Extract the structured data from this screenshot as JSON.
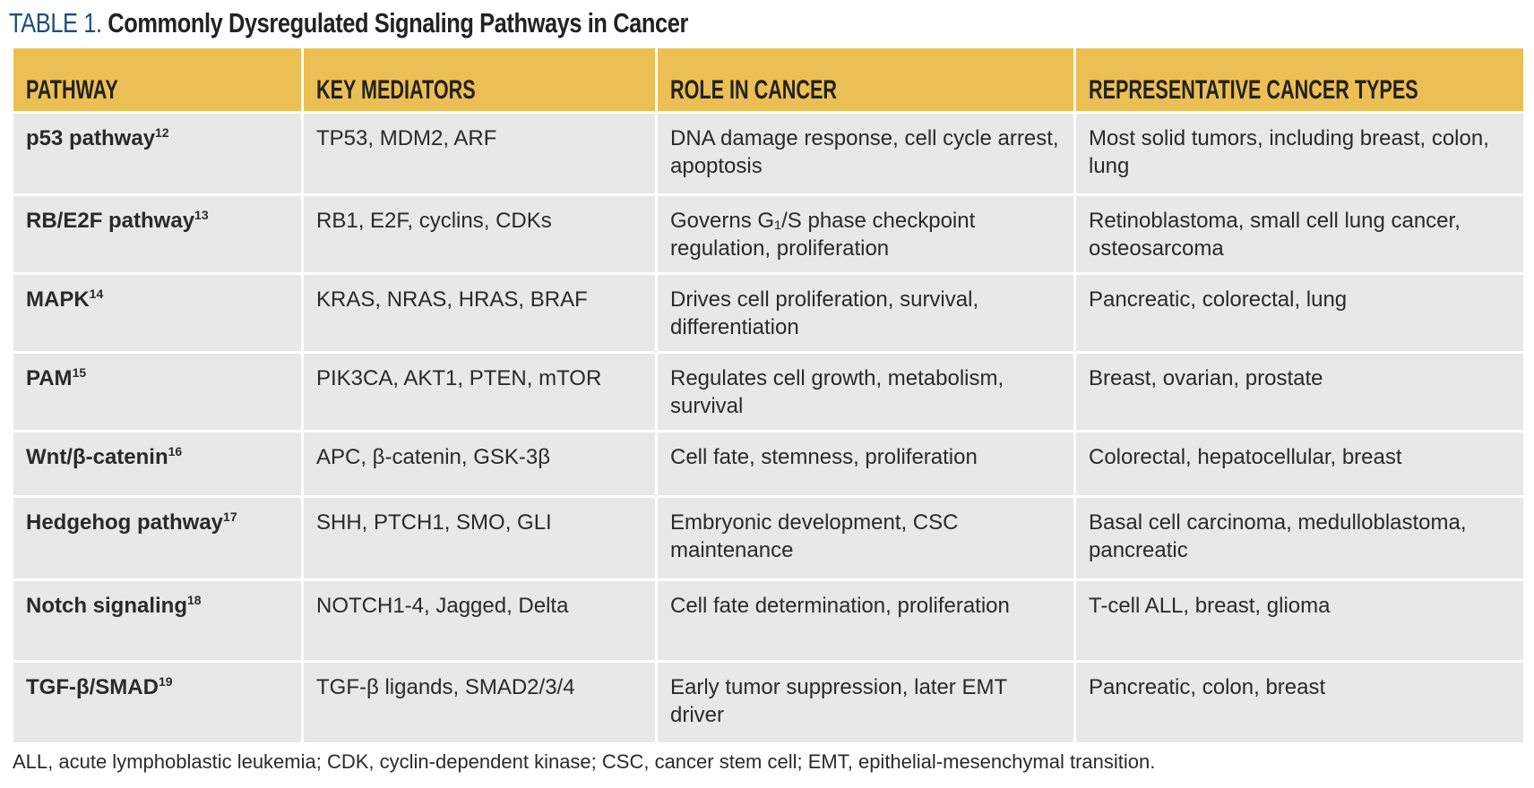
{
  "title": {
    "label": "TABLE 1.",
    "text": "Commonly Dysregulated Signaling Pathways in Cancer"
  },
  "colors": {
    "header_bg": "#ecbf55",
    "row_bg": "#e8e8e8",
    "label": "#1d4e7a"
  },
  "columns": [
    "PATHWAY",
    "KEY MEDIATORS",
    "ROLE IN CANCER",
    "REPRESENTATIVE CANCER TYPES"
  ],
  "rows": [
    {
      "pathway": "p53 pathway",
      "ref": "12",
      "mediators": "TP53, MDM2, ARF",
      "role": "DNA damage response, cell cycle arrest, apoptosis",
      "types": "Most solid tumors, including breast, colon, lung"
    },
    {
      "pathway": "RB/E2F pathway",
      "ref": "13",
      "mediators": "RB1, E2F, cyclins, CDKs",
      "role": "Governs G₁/S phase checkpoint regulation, proliferation",
      "types": "Retinoblastoma, small cell lung cancer, osteosarcoma"
    },
    {
      "pathway": "MAPK",
      "ref": "14",
      "mediators": "KRAS, NRAS, HRAS, BRAF",
      "role": "Drives cell proliferation, survival, differentiation",
      "types": "Pancreatic, colorectal, lung"
    },
    {
      "pathway": "PAM",
      "ref": "15",
      "mediators": "PIK3CA, AKT1, PTEN, mTOR",
      "role": "Regulates cell growth, metabolism, survival",
      "types": "Breast, ovarian, prostate"
    },
    {
      "pathway": "Wnt/β-catenin",
      "ref": "16",
      "mediators": "APC, β-catenin, GSK-3β",
      "role": "Cell fate, stemness, proliferation",
      "types": "Colorectal, hepatocellular, breast"
    },
    {
      "pathway": "Hedgehog pathway",
      "ref": "17",
      "mediators": "SHH, PTCH1, SMO, GLI",
      "role": "Embryonic development, CSC maintenance",
      "types": "Basal cell carcinoma, medulloblastoma, pancreatic"
    },
    {
      "pathway": "Notch signaling",
      "ref": "18",
      "mediators": "NOTCH1-4, Jagged, Delta",
      "role": "Cell fate determination, proliferation",
      "types": "T-cell ALL, breast, glioma"
    },
    {
      "pathway": "TGF-β/SMAD",
      "ref": "19",
      "mediators": "TGF-β ligands, SMAD2/3/4",
      "role": "Early tumor suppression, later EMT driver",
      "types": "Pancreatic, colon, breast"
    }
  ],
  "footnote": "ALL, acute lymphoblastic leukemia; CDK, cyclin-dependent kinase; CSC, cancer stem cell; EMT, epithelial-mesenchymal transition."
}
